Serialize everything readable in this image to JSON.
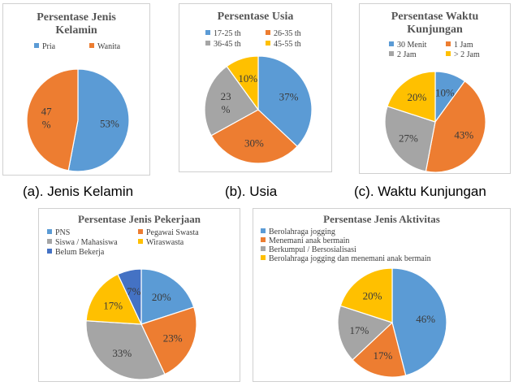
{
  "colors": {
    "blue": "#5b9bd5",
    "orange": "#ed7d31",
    "gray": "#a5a5a5",
    "yellow": "#ffc000",
    "darkblue": "#4472c4"
  },
  "captions": {
    "a": "(a). Jenis Kelamin",
    "b": "(b). Usia",
    "c": "(c). Waktu Kunjungan"
  },
  "chart_data": [
    {
      "id": "gender",
      "type": "pie",
      "title_lines": [
        "Persentase Jenis",
        "Kelamin"
      ],
      "categories": [
        "Pria",
        "Wanita"
      ],
      "values": [
        53,
        47
      ],
      "labels": [
        "53%",
        "47 %"
      ],
      "legend_placement": "top"
    },
    {
      "id": "age",
      "type": "pie",
      "title_lines": [
        "Persentase Usia"
      ],
      "categories": [
        "17-25 th",
        "26-35 th",
        "36-45 th",
        "45-55 th"
      ],
      "values": [
        37,
        30,
        23,
        10
      ],
      "labels": [
        "37%",
        "30%",
        "23 %",
        "10%"
      ],
      "legend_placement": "top"
    },
    {
      "id": "time",
      "type": "pie",
      "title_lines": [
        "Persentase Waktu",
        "Kunjungan"
      ],
      "categories": [
        "30 Menit",
        "1 Jam",
        "2 Jam",
        "> 2 Jam"
      ],
      "values": [
        10,
        43,
        27,
        20
      ],
      "labels": [
        "10%",
        "43%",
        "27%",
        "20%"
      ],
      "legend_placement": "top"
    },
    {
      "id": "job",
      "type": "pie",
      "title_lines": [
        "Persentase Jenis Pekerjaan"
      ],
      "categories": [
        "PNS",
        "Pegawai Swasta",
        "Siswa / Mahasiswa",
        "Wiraswasta",
        "Belum Bekerja"
      ],
      "values": [
        20,
        23,
        33,
        17,
        7
      ],
      "labels": [
        "20%",
        "23%",
        "33%",
        "17%",
        "7%"
      ],
      "legend_placement": "top"
    },
    {
      "id": "activity",
      "type": "pie",
      "title_lines": [
        "Persentase Jenis Aktivitas"
      ],
      "categories": [
        "Berolahraga jogging",
        "Menemani anak bermain",
        "Berkumpul / Bersosialisasi",
        "Berolahraga jogging dan menemani anak bermain"
      ],
      "values": [
        46,
        17,
        17,
        20
      ],
      "labels": [
        "46%",
        "17%",
        "17%",
        "20%"
      ],
      "legend_placement": "top"
    }
  ]
}
